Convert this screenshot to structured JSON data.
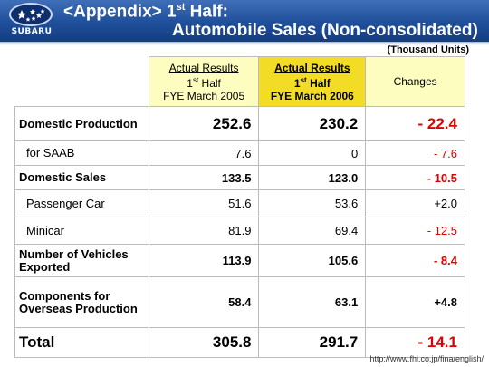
{
  "header": {
    "logo_text": "SUBARU",
    "title_line1_prefix": "<Appendix> 1",
    "title_line1_sup": "st",
    "title_line1_suffix": " Half:",
    "title_line2": "Automobile Sales (Non-consolidated)",
    "units": "(Thousand Units)"
  },
  "table": {
    "col_prev": {
      "line1": "Actual Results",
      "line2_num": "1",
      "line2_sup": "st",
      "line2_rest": " Half",
      "line3": "FYE March 2005"
    },
    "col_cur": {
      "line1": "Actual Results",
      "line2_num": "1",
      "line2_sup": "st",
      "line2_rest": " Half",
      "line3": "FYE March 2006"
    },
    "col_chg": "Changes",
    "rows": [
      {
        "label": "Domestic Production",
        "prev": "252.6",
        "cur": "230.2",
        "change": "- 22.4"
      },
      {
        "label": "for SAAB",
        "prev": "7.6",
        "cur": "0",
        "change": "- 7.6"
      },
      {
        "label": "Domestic Sales",
        "prev": "133.5",
        "cur": "123.0",
        "change": "- 10.5"
      },
      {
        "label": "Passenger Car",
        "prev": "51.6",
        "cur": "53.6",
        "change": "+2.0"
      },
      {
        "label": "Minicar",
        "prev": "81.9",
        "cur": "69.4",
        "change": "- 12.5"
      },
      {
        "label": "Number of Vehicles Exported",
        "prev": "113.9",
        "cur": "105.6",
        "change": "- 8.4"
      },
      {
        "label": "Components for Overseas Production",
        "prev": "58.4",
        "cur": "63.1",
        "change": "+4.8"
      },
      {
        "label": "Total",
        "prev": "305.8",
        "cur": "291.7",
        "change": "- 14.1"
      }
    ]
  },
  "footer": {
    "url": "http://www.fhi.co.jp/fina/english/"
  },
  "colors": {
    "header_blue": "#1f4f9a",
    "highlight_yellow": "#f2dc25",
    "light_yellow": "#fdfdc0",
    "negative_red": "#e00000"
  }
}
